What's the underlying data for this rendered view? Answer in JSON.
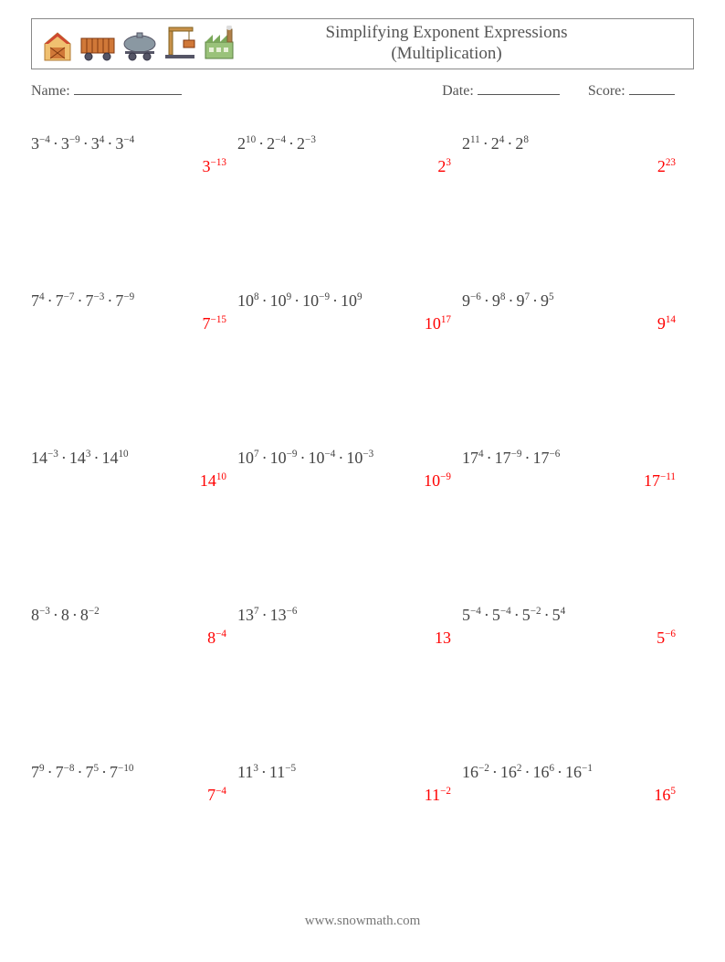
{
  "header": {
    "title_line1": "Simplifying Exponent Expressions",
    "title_line2": "(Multiplication)"
  },
  "info": {
    "name_label": "Name:",
    "date_label": "Date:",
    "score_label": "Score:"
  },
  "style": {
    "expr_color": "#444444",
    "answer_color": "#ff0000",
    "expr_fontsize": 18,
    "answer_fontsize": 18,
    "grid_columns": 3,
    "grid_rows": 5,
    "row_gap": 112,
    "page_bg": "#ffffff",
    "border_color": "#888888",
    "name_line_width": 118,
    "date_line_width": 90,
    "score_line_width": 50,
    "icon_colors": {
      "barn": "#d89050",
      "wagon": "#d07838",
      "tank": "#6a7a85",
      "crane": "#c8924a",
      "factory": "#7ab06a"
    }
  },
  "problems": [
    {
      "terms": [
        {
          "b": 3,
          "e": -4
        },
        {
          "b": 3,
          "e": -9
        },
        {
          "b": 3,
          "e": 4
        },
        {
          "b": 3,
          "e": -4
        }
      ],
      "ans": {
        "b": 3,
        "e": -13
      }
    },
    {
      "terms": [
        {
          "b": 2,
          "e": 10
        },
        {
          "b": 2,
          "e": -4
        },
        {
          "b": 2,
          "e": -3
        }
      ],
      "ans": {
        "b": 2,
        "e": 3
      }
    },
    {
      "terms": [
        {
          "b": 2,
          "e": 11
        },
        {
          "b": 2,
          "e": 4
        },
        {
          "b": 2,
          "e": 8
        }
      ],
      "ans": {
        "b": 2,
        "e": 23
      }
    },
    {
      "terms": [
        {
          "b": 7,
          "e": 4
        },
        {
          "b": 7,
          "e": -7
        },
        {
          "b": 7,
          "e": -3
        },
        {
          "b": 7,
          "e": -9
        }
      ],
      "ans": {
        "b": 7,
        "e": -15
      }
    },
    {
      "terms": [
        {
          "b": 10,
          "e": 8
        },
        {
          "b": 10,
          "e": 9
        },
        {
          "b": 10,
          "e": -9
        },
        {
          "b": 10,
          "e": 9
        }
      ],
      "ans": {
        "b": 10,
        "e": 17
      }
    },
    {
      "terms": [
        {
          "b": 9,
          "e": -6
        },
        {
          "b": 9,
          "e": 8
        },
        {
          "b": 9,
          "e": 7
        },
        {
          "b": 9,
          "e": 5
        }
      ],
      "ans": {
        "b": 9,
        "e": 14
      }
    },
    {
      "terms": [
        {
          "b": 14,
          "e": -3
        },
        {
          "b": 14,
          "e": 3
        },
        {
          "b": 14,
          "e": 10
        }
      ],
      "ans": {
        "b": 14,
        "e": 10
      }
    },
    {
      "terms": [
        {
          "b": 10,
          "e": 7
        },
        {
          "b": 10,
          "e": -9
        },
        {
          "b": 10,
          "e": -4
        },
        {
          "b": 10,
          "e": -3
        }
      ],
      "ans": {
        "b": 10,
        "e": -9
      }
    },
    {
      "terms": [
        {
          "b": 17,
          "e": 4
        },
        {
          "b": 17,
          "e": -9
        },
        {
          "b": 17,
          "e": -6
        }
      ],
      "ans": {
        "b": 17,
        "e": -11
      }
    },
    {
      "terms": [
        {
          "b": 8,
          "e": -3
        },
        {
          "b": 8,
          "e": 1
        },
        {
          "b": 8,
          "e": -2
        }
      ],
      "ans": {
        "b": 8,
        "e": -4
      }
    },
    {
      "terms": [
        {
          "b": 13,
          "e": 7
        },
        {
          "b": 13,
          "e": -6
        }
      ],
      "ans": {
        "b": 13,
        "e": 1
      }
    },
    {
      "terms": [
        {
          "b": 5,
          "e": -4
        },
        {
          "b": 5,
          "e": -4
        },
        {
          "b": 5,
          "e": -2
        },
        {
          "b": 5,
          "e": 4
        }
      ],
      "ans": {
        "b": 5,
        "e": -6
      }
    },
    {
      "terms": [
        {
          "b": 7,
          "e": 9
        },
        {
          "b": 7,
          "e": -8
        },
        {
          "b": 7,
          "e": 5
        },
        {
          "b": 7,
          "e": -10
        }
      ],
      "ans": {
        "b": 7,
        "e": -4
      }
    },
    {
      "terms": [
        {
          "b": 11,
          "e": 3
        },
        {
          "b": 11,
          "e": -5
        }
      ],
      "ans": {
        "b": 11,
        "e": -2
      }
    },
    {
      "terms": [
        {
          "b": 16,
          "e": -2
        },
        {
          "b": 16,
          "e": 2
        },
        {
          "b": 16,
          "e": 6
        },
        {
          "b": 16,
          "e": -1
        }
      ],
      "ans": {
        "b": 16,
        "e": 5
      }
    }
  ],
  "footer": {
    "url": "www.snowmath.com"
  }
}
